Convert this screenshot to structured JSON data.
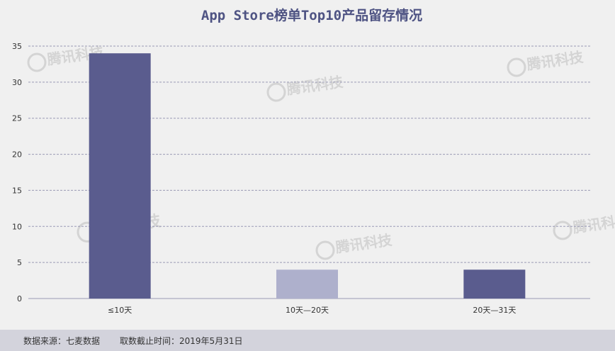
{
  "chart_data": {
    "type": "bar",
    "title": "App Store榜单Top10产品留存情况",
    "categories": [
      "≤10天",
      "10天—20天",
      "20天—31天"
    ],
    "values": [
      34,
      4,
      4
    ],
    "bar_colors": [
      "#5a5c8e",
      "#aeb0cc",
      "#5a5c8e"
    ],
    "ylim": [
      0,
      35
    ],
    "yticks": [
      0,
      5,
      10,
      15,
      20,
      25,
      30,
      35
    ],
    "grid": true,
    "xlabel": "",
    "ylabel": ""
  },
  "watermark_text": "腾讯科技",
  "footer": {
    "source": "数据来源：七麦数据",
    "date": "取数截止时间：2019年5月31日"
  },
  "colors": {
    "title": "#4e5383",
    "background": "#f0f0f0",
    "footer_bg": "#d3d3dc",
    "grid": "#9a9ab5"
  }
}
